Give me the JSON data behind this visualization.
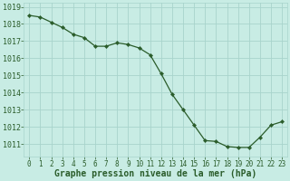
{
  "x": [
    0,
    1,
    2,
    3,
    4,
    5,
    6,
    7,
    8,
    9,
    10,
    11,
    12,
    13,
    14,
    15,
    16,
    17,
    18,
    19,
    20,
    21,
    22,
    23
  ],
  "y": [
    1018.5,
    1018.4,
    1018.1,
    1017.8,
    1017.4,
    1017.2,
    1016.7,
    1016.7,
    1016.9,
    1016.8,
    1016.6,
    1016.2,
    1015.1,
    1013.9,
    1013.0,
    1012.1,
    1011.2,
    1011.15,
    1010.85,
    1010.8,
    1010.8,
    1011.4,
    1012.1,
    1012.3
  ],
  "line_color": "#2a5c2a",
  "marker_color": "#2a5c2a",
  "bg_color": "#c8ece4",
  "grid_color": "#a8d4cc",
  "xlabel": "Graphe pression niveau de la mer (hPa)",
  "ylim": [
    1010.25,
    1019.25
  ],
  "xlim": [
    -0.5,
    23.5
  ],
  "yticks": [
    1011,
    1012,
    1013,
    1014,
    1015,
    1016,
    1017,
    1018,
    1019
  ],
  "xticks": [
    0,
    1,
    2,
    3,
    4,
    5,
    6,
    7,
    8,
    9,
    10,
    11,
    12,
    13,
    14,
    15,
    16,
    17,
    18,
    19,
    20,
    21,
    22,
    23
  ],
  "xlabel_fontsize": 7.0,
  "ytick_fontsize": 6.0,
  "xtick_fontsize": 5.5
}
